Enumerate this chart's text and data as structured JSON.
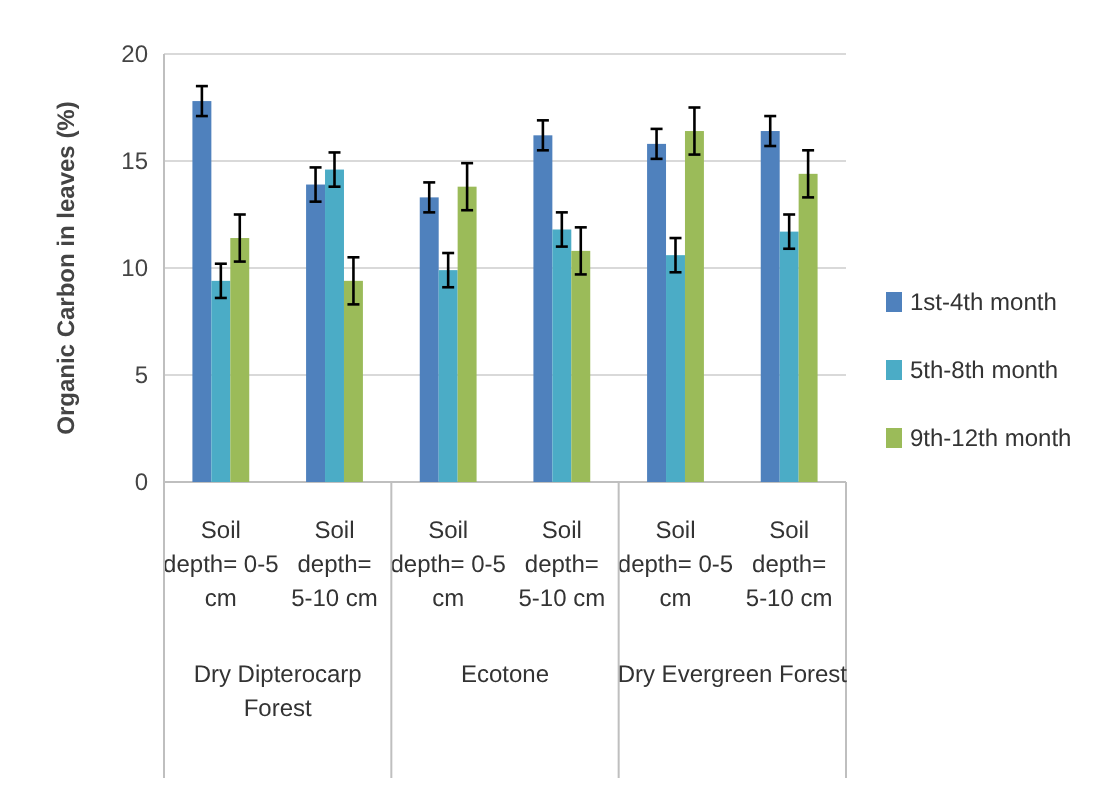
{
  "chart_data": {
    "type": "bar",
    "ylabel": "Organic Carbon in leaves (%)",
    "categories": [
      "Soil depth= 0-5 cm",
      "Soil depth= 5-10 cm",
      "Soil depth= 0-5 cm",
      "Soil depth= 5-10 cm",
      "Soil depth= 0-5 cm",
      "Soil depth= 5-10 cm"
    ],
    "series": [
      {
        "name": "1st-4th month",
        "color": "#4f81bd",
        "values": [
          17.8,
          13.9,
          13.3,
          16.2,
          15.8,
          16.4
        ],
        "errors": [
          0.7,
          0.8,
          0.7,
          0.7,
          0.7,
          0.7
        ]
      },
      {
        "name": "5th-8th month",
        "color": "#4bacc6",
        "values": [
          9.4,
          14.6,
          9.9,
          11.8,
          10.6,
          11.7
        ],
        "errors": [
          0.8,
          0.8,
          0.8,
          0.8,
          0.8,
          0.8
        ]
      },
      {
        "name": "9th-12th month",
        "color": "#9bbb59",
        "values": [
          11.4,
          9.4,
          13.8,
          10.8,
          16.4,
          14.4
        ],
        "errors": [
          1.1,
          1.1,
          1.1,
          1.1,
          1.1,
          1.1
        ]
      }
    ],
    "annotations": [
      "Dry Dipterocarp Forest",
      "Ecotone",
      "Dry Evergreen Forest"
    ],
    "ylim": [
      0,
      20
    ],
    "yticks": [
      0,
      5,
      10,
      15,
      20
    ],
    "grid": "y",
    "legend": "right"
  }
}
